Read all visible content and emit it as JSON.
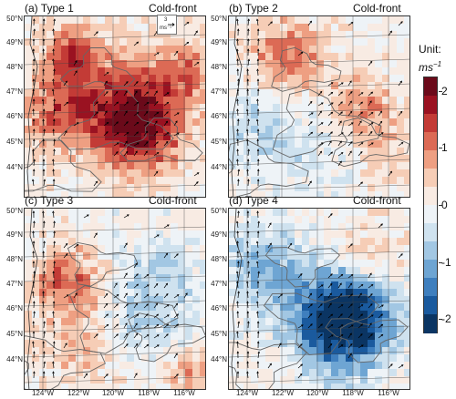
{
  "panels": [
    {
      "label": "(a) Type 1",
      "case": "Cold-front",
      "mode": "pos"
    },
    {
      "label": "(b) Type 2",
      "case": "Cold-front",
      "mode": "mix"
    },
    {
      "label": "(c) Type 3",
      "case": "Cold-front",
      "mode": "mixneg"
    },
    {
      "label": "(d) Type 4",
      "case": "Cold-front",
      "mode": "neg"
    }
  ],
  "lat_labels": [
    "50°N",
    "49°N",
    "48°N",
    "47°N",
    "46°N",
    "45°N",
    "44°N"
  ],
  "lon_labels": [
    "124°W",
    "122°W",
    "120°W",
    "118°W",
    "116°W"
  ],
  "reference_vector": {
    "value": "3",
    "unit": "ms⁻¹"
  },
  "colorbar": {
    "title": "Unit:",
    "unit_base": "ms",
    "unit_exp": "−1",
    "ticks": [
      "2",
      "1",
      "0",
      "-1",
      "-2"
    ],
    "range": [
      -2.25,
      2.25
    ],
    "colors": [
      "#0b3563",
      "#1a5a9e",
      "#3f7fbe",
      "#6ea5d3",
      "#a2c7e3",
      "#cfe2ef",
      "#eef3f7",
      "#f8ebe3",
      "#f6cdb6",
      "#ee9f82",
      "#dc6a55",
      "#c33b36",
      "#9a1221",
      "#6b0a1a"
    ]
  }
}
